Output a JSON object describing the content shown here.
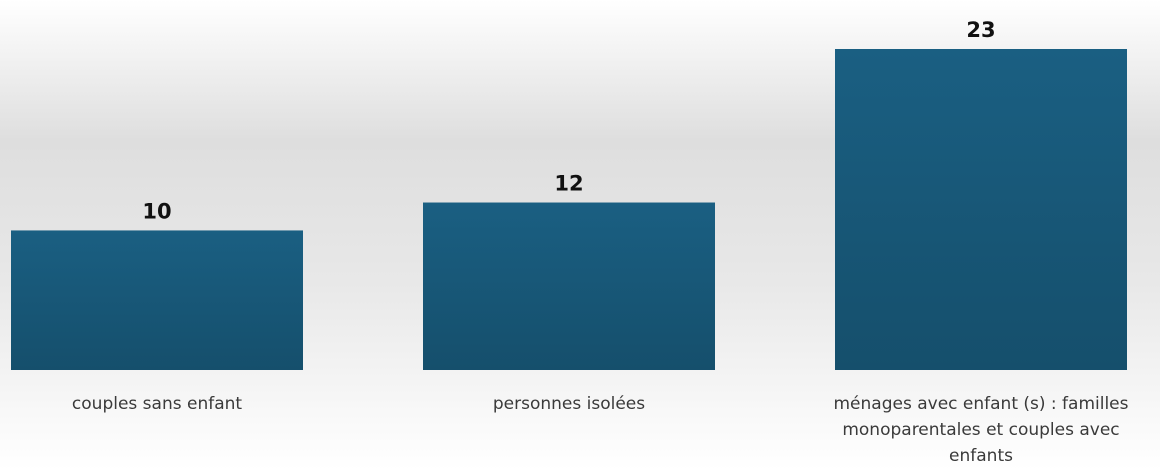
{
  "chart_data": {
    "type": "bar",
    "categories": [
      "couples sans enfant",
      "personnes isolées",
      "ménages avec enfant (s) : familles monoparentales et couples avec enfants"
    ],
    "category_label_lines": [
      [
        "couples sans enfant"
      ],
      [
        "personnes isolées"
      ],
      [
        "ménages avec enfant (s) : familles",
        "monoparentales et couples avec",
        "enfants"
      ]
    ],
    "values": [
      10,
      12,
      23
    ],
    "data_labels": [
      "10",
      "12",
      "23"
    ],
    "ylim": [
      0,
      23
    ],
    "grid": false,
    "legend": "none",
    "bar_color_top": "#1a5f82",
    "bar_color_bottom": "#154f6c"
  }
}
